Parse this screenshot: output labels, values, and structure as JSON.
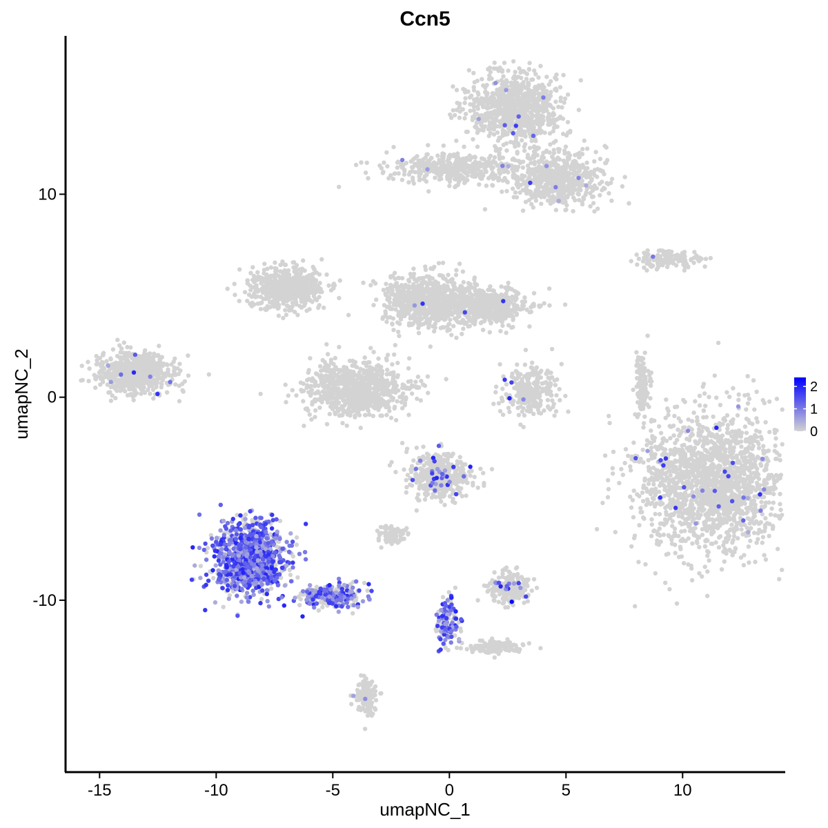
{
  "chart_data": {
    "type": "scatter",
    "title": "Ccn5",
    "xlabel": "umapNC_1",
    "ylabel": "umapNC_2",
    "xlim": [
      -16.4,
      14.4
    ],
    "ylim": [
      -18.4,
      17.8
    ],
    "x_ticks": [
      -15,
      -10,
      -5,
      0,
      5,
      10
    ],
    "x_tick_labels": [
      "-15",
      "-10",
      "-5",
      "0",
      "5",
      "10"
    ],
    "y_ticks": [
      -10,
      0,
      10
    ],
    "y_tick_labels": [
      "-10",
      "0",
      "10"
    ],
    "grid": false,
    "legend_position": "right",
    "color_scale": {
      "low_color": "#d3d3d3",
      "high_color": "#0000ff",
      "min": 0,
      "max": 2.4,
      "ticks": [
        0,
        1,
        2
      ],
      "tick_labels": [
        "0",
        "1",
        "2"
      ]
    },
    "clusters": [
      {
        "cx": 11.3,
        "cy": -4.2,
        "sx": 2.1,
        "sy": 2.3,
        "n": 1800,
        "expr": 0.02
      },
      {
        "cx": 2.8,
        "cy": 14.2,
        "sx": 1.3,
        "sy": 1.1,
        "n": 900,
        "expr": 0.01
      },
      {
        "cx": 4.6,
        "cy": 10.8,
        "sx": 1.4,
        "sy": 0.9,
        "n": 600,
        "expr": 0.01
      },
      {
        "cx": 0.2,
        "cy": 11.3,
        "sx": 1.9,
        "sy": 0.5,
        "n": 420,
        "expr": 0.01
      },
      {
        "cx": -6.9,
        "cy": 5.4,
        "sx": 1.1,
        "sy": 0.7,
        "n": 520,
        "expr": 0.0
      },
      {
        "cx": -4.0,
        "cy": 0.4,
        "sx": 1.5,
        "sy": 0.9,
        "n": 800,
        "expr": 0.0
      },
      {
        "cx": -1.0,
        "cy": 4.7,
        "sx": 1.2,
        "sy": 0.9,
        "n": 700,
        "expr": 0.0
      },
      {
        "cx": 1.6,
        "cy": 4.5,
        "sx": 1.3,
        "sy": 0.6,
        "n": 500,
        "expr": 0.01
      },
      {
        "cx": -13.4,
        "cy": 1.2,
        "sx": 1.1,
        "sy": 0.7,
        "n": 650,
        "expr": 0.01
      },
      {
        "cx": 3.4,
        "cy": 0.3,
        "sx": 0.8,
        "sy": 0.8,
        "n": 260,
        "expr": 0.02
      },
      {
        "cx": 9.4,
        "cy": 6.8,
        "sx": 0.9,
        "sy": 0.3,
        "n": 140,
        "expr": 0.02
      },
      {
        "cx": 8.3,
        "cy": 0.6,
        "sx": 0.2,
        "sy": 0.9,
        "n": 120,
        "expr": 0.0
      },
      {
        "cx": -8.6,
        "cy": -7.9,
        "sx": 1.0,
        "sy": 1.2,
        "n": 1100,
        "expr": 0.72
      },
      {
        "cx": -5.0,
        "cy": -9.8,
        "sx": 0.9,
        "sy": 0.4,
        "n": 260,
        "expr": 0.6
      },
      {
        "cx": -0.4,
        "cy": -3.9,
        "sx": 0.9,
        "sy": 0.8,
        "n": 420,
        "expr": 0.08
      },
      {
        "cx": -2.4,
        "cy": -6.8,
        "sx": 0.4,
        "sy": 0.3,
        "n": 90,
        "expr": 0.0
      },
      {
        "cx": 2.6,
        "cy": -9.4,
        "sx": 0.6,
        "sy": 0.5,
        "n": 200,
        "expr": 0.06
      },
      {
        "cx": -0.1,
        "cy": -11.0,
        "sx": 0.3,
        "sy": 0.8,
        "n": 140,
        "expr": 0.5
      },
      {
        "cx": 1.9,
        "cy": -12.3,
        "sx": 0.8,
        "sy": 0.2,
        "n": 120,
        "expr": 0.0
      },
      {
        "cx": -3.6,
        "cy": -14.7,
        "sx": 0.3,
        "sy": 0.6,
        "n": 120,
        "expr": 0.02
      }
    ]
  }
}
